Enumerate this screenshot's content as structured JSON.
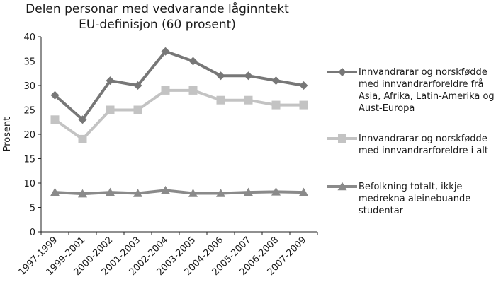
{
  "chart_data": {
    "type": "line",
    "title_lines": [
      "Delen personar med vedvarande låginntekt",
      "EU-definisjon (60 prosent)"
    ],
    "xlabel": "",
    "ylabel": "Prosent",
    "ylim": [
      0,
      40
    ],
    "yticks": [
      "0",
      "5",
      "10",
      "15",
      "20",
      "25",
      "30",
      "35",
      "40"
    ],
    "categories": [
      "1997-1999",
      "1999-2001",
      "2000-2002",
      "2001-2003",
      "2002-2004",
      "2003-2005",
      "2004-2006",
      "2005-2007",
      "2006-2008",
      "2007-2009"
    ],
    "grid": false,
    "legend_position": "right",
    "series": [
      {
        "name_lines": [
          "Innvandrarar og norskfødde",
          "med innvandrarforeldre frå",
          "Asia, Afrika, Latin-Amerika og",
          "Aust-Europa"
        ],
        "marker": "diamond",
        "color": "#777777",
        "values": [
          28,
          23,
          31,
          30,
          37,
          35,
          32,
          32,
          31,
          30
        ]
      },
      {
        "name_lines": [
          "Innvandrarar og norskfødde",
          "med innvandrarforeldre i alt"
        ],
        "marker": "square",
        "color": "#c3c3c3",
        "values": [
          23,
          19,
          25,
          25,
          29,
          29,
          27,
          27,
          26,
          26
        ]
      },
      {
        "name_lines": [
          "Befolkning totalt, ikkje",
          "medrekna aleinebuande",
          "studentar"
        ],
        "marker": "triangle",
        "color": "#8a8a8a",
        "values": [
          8.1,
          7.8,
          8.1,
          7.9,
          8.5,
          7.9,
          7.9,
          8.1,
          8.2,
          8.1
        ]
      }
    ]
  }
}
